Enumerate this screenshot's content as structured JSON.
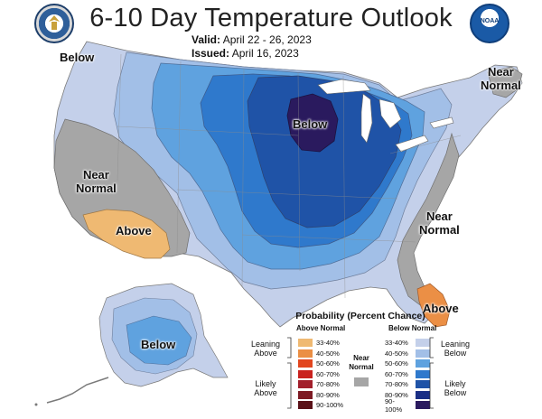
{
  "header": {
    "title": "6-10 Day Temperature Outlook",
    "valid_label": "Valid:",
    "valid_value": "April 22 - 26, 2023",
    "issued_label": "Issued:",
    "issued_value": "April 16, 2023"
  },
  "logos": {
    "left": "commerce-seal",
    "right": "noaa"
  },
  "noaa_text": "NOAA",
  "region_labels": {
    "northwest_below": "Below",
    "west_near_normal": "Near\nNormal",
    "southwest_above": "Above",
    "great_lakes_below": "Below",
    "northeast_near_normal": "Near\nNormal",
    "southeast_near_normal": "Near\nNormal",
    "florida_above": "Above",
    "alaska_below": "Below"
  },
  "legend": {
    "title": "Probability (Percent Chance)",
    "above_header": "Above Normal",
    "below_header": "Below Normal",
    "near_normal_label": "Near\nNormal",
    "leaning_above": "Leaning\nAbove",
    "likely_above": "Likely\nAbove",
    "leaning_below": "Leaning\nBelow",
    "likely_below": "Likely\nBelow",
    "above_ranges": [
      "33-40%",
      "40-50%",
      "50-60%",
      "60-70%",
      "70-80%",
      "80-90%",
      "90-100%"
    ],
    "below_ranges": [
      "33-40%",
      "40-50%",
      "50-60%",
      "60-70%",
      "70-80%",
      "80-90%",
      "90-100%"
    ],
    "above_colors": [
      "#efb972",
      "#eb8f45",
      "#e2461f",
      "#c9221e",
      "#a21f2b",
      "#7d1a24",
      "#5a1118"
    ],
    "below_colors": [
      "#c4d0ea",
      "#a2bfe7",
      "#5fa2df",
      "#2f79cc",
      "#1f53a7",
      "#1a2f85",
      "#2a1a5e"
    ],
    "near_normal_color": "#a6a6a6"
  }
}
